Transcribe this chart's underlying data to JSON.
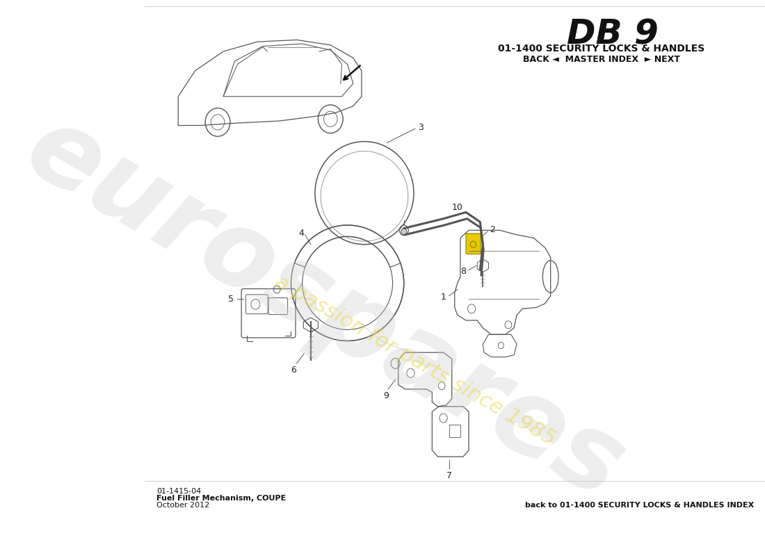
{
  "title_model": "DB 9",
  "title_section": "01-1400 SECURITY LOCKS & HANDLES",
  "title_nav": "BACK ◄  MASTER INDEX  ► NEXT",
  "bottom_left_line1": "01-1415-04",
  "bottom_left_line2": "Fuel Filler Mechanism, COUPE",
  "bottom_left_line3": "October 2012",
  "bottom_right": "back to 01-1400 SECURITY LOCKS & HANDLES INDEX",
  "bg_color": "#ffffff",
  "watermark_eurospares_color": "#d0d0d0",
  "watermark_passion_color": "#e8d840",
  "line_color": "#555555",
  "part_label_color": "#333333"
}
